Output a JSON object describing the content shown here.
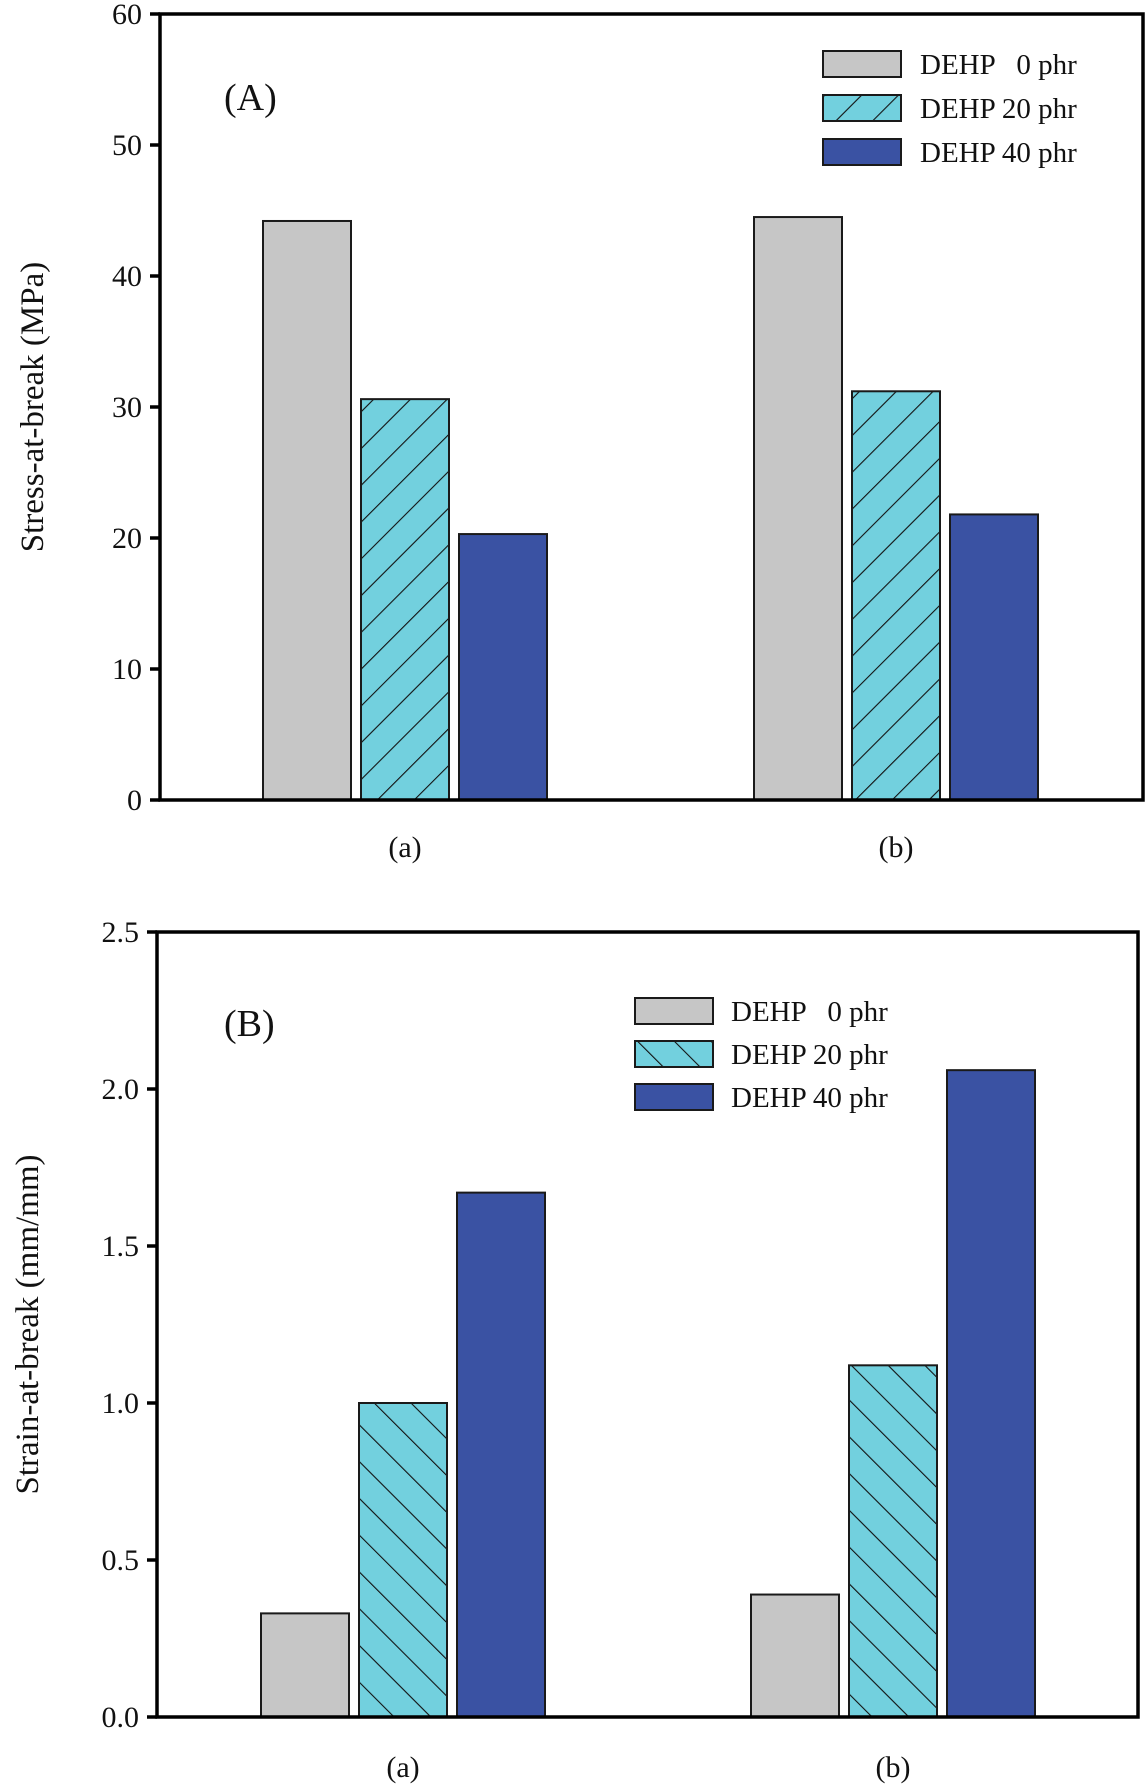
{
  "chart_data": [
    {
      "type": "bar",
      "panel_label": "(A)",
      "title": "",
      "xlabel": "",
      "ylabel": "Stress-at-break (MPa)",
      "ylim": [
        0,
        60
      ],
      "yticks": [
        0,
        10,
        20,
        30,
        40,
        50,
        60
      ],
      "ytick_labels": [
        "0",
        "10",
        "20",
        "30",
        "40",
        "50",
        "60"
      ],
      "categories": [
        "(a)",
        "(b)"
      ],
      "legend_position": "top-right",
      "grid": false,
      "series": [
        {
          "name": "DEHP   0 phr",
          "values": [
            44.2,
            44.5
          ],
          "color": "#c6c6c6",
          "pattern": "none"
        },
        {
          "name": "DEHP 20 phr",
          "values": [
            30.6,
            31.2
          ],
          "color": "#72d0de",
          "pattern": "hatch-backslash"
        },
        {
          "name": "DEHP 40 phr",
          "values": [
            20.3,
            21.8
          ],
          "color": "#3a52a3",
          "pattern": "none"
        }
      ]
    },
    {
      "type": "bar",
      "panel_label": "(B)",
      "title": "",
      "xlabel": "",
      "ylabel": "Strain-at-break (mm/mm)",
      "ylim": [
        0,
        2.5
      ],
      "yticks": [
        0,
        0.5,
        1.0,
        1.5,
        2.0,
        2.5
      ],
      "ytick_labels": [
        "0.0",
        "0.5",
        "1.0",
        "1.5",
        "2.0",
        "2.5"
      ],
      "categories": [
        "(a)",
        "(b)"
      ],
      "legend_position": "top-center-right",
      "grid": false,
      "series": [
        {
          "name": "DEHP   0 phr",
          "values": [
            0.33,
            0.39
          ],
          "color": "#c6c6c6",
          "pattern": "none"
        },
        {
          "name": "DEHP 20 phr",
          "values": [
            1.0,
            1.12
          ],
          "color": "#72d0de",
          "pattern": "hatch-slash"
        },
        {
          "name": "DEHP 40 phr",
          "values": [
            1.67,
            2.06
          ],
          "color": "#3a52a3",
          "pattern": "none"
        }
      ]
    }
  ]
}
